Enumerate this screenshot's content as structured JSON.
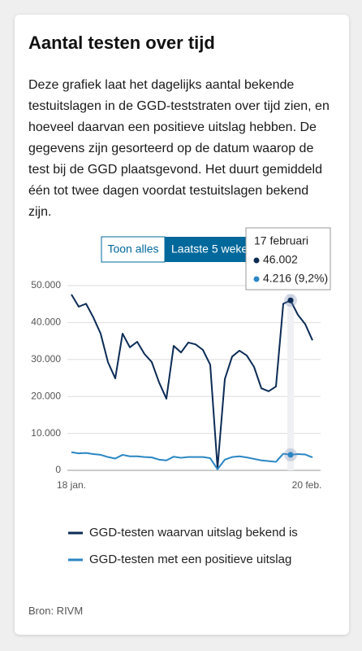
{
  "chart_data": {
    "type": "line",
    "title": "Aantal testen over tijd",
    "subtitle": "Deze grafiek laat het dagelijks aantal bekende testuitslagen in de GGD-teststraten over tijd zien, en hoeveel daarvan een positieve uitslag hebben. De gegevens zijn gesorteerd op de datum waarop de test bij de GGD plaatsgevond. Het duurt gemiddeld één tot twee dagen voordat testuitslagen bekend zijn.",
    "buttons": [
      "Toon alles",
      "Laatste 5 weken"
    ],
    "categories": [
      "18 jan.",
      null,
      null,
      null,
      null,
      null,
      null,
      null,
      null,
      null,
      null,
      null,
      null,
      null,
      null,
      null,
      null,
      null,
      null,
      null,
      null,
      null,
      null,
      null,
      null,
      null,
      null,
      null,
      null,
      null,
      null,
      null,
      null,
      "20 feb."
    ],
    "series": [
      {
        "name": "GGD-testen waarvan uitslag bekend is",
        "color": "#0b2b55",
        "values": [
          47600,
          44300,
          45100,
          41400,
          37000,
          29300,
          24900,
          37000,
          33300,
          34800,
          31500,
          29300,
          23800,
          19400,
          33700,
          31900,
          34600,
          34100,
          32600,
          28600,
          600,
          24700,
          30800,
          32400,
          31100,
          28000,
          22200,
          21400,
          22700,
          45100,
          46002,
          42100,
          39600,
          35200
        ]
      },
      {
        "name": "GGD-testen met een positieve uitslag",
        "color": "#2a86c4",
        "values": [
          4900,
          4600,
          4700,
          4400,
          4200,
          3600,
          3200,
          4200,
          3800,
          3800,
          3600,
          3500,
          2900,
          2700,
          3700,
          3400,
          3600,
          3600,
          3600,
          3300,
          300,
          2900,
          3600,
          3800,
          3500,
          3100,
          2700,
          2500,
          2300,
          4500,
          4216,
          4400,
          4300,
          3500
        ]
      }
    ],
    "ylim": [
      0,
      50000
    ],
    "yticks": [
      0,
      {
        "value": 10000,
        "label": "10.000"
      },
      {
        "value": 20000,
        "label": "20.000"
      },
      {
        "value": 30000,
        "label": "30.000"
      },
      {
        "value": 40000,
        "label": "40.000"
      },
      {
        "value": 50000,
        "label": "50.000"
      }
    ],
    "grid": true,
    "tooltip": {
      "index": 30,
      "title": "17 februari",
      "labels": [
        "46.002",
        "4.216 (9,2%)"
      ]
    },
    "source": "Bron: RIVM"
  }
}
